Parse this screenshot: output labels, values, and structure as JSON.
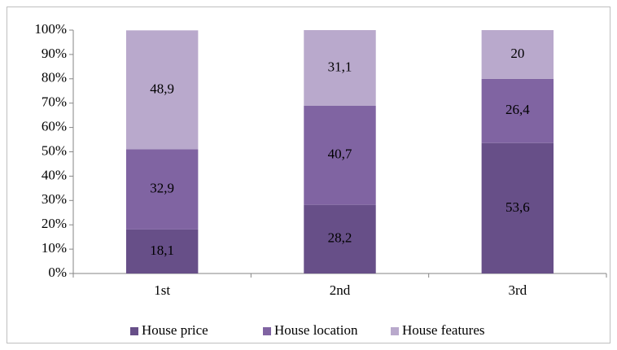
{
  "chart_data": {
    "type": "stacked_bar",
    "categories": [
      "1st",
      "2nd",
      "3rd"
    ],
    "series": [
      {
        "name": "House price",
        "color": "#674f88",
        "values": [
          18.1,
          28.2,
          53.6
        ],
        "value_labels": [
          "18,1",
          "28,2",
          "53,6"
        ]
      },
      {
        "name": "House location",
        "color": "#8064a2",
        "values": [
          32.9,
          40.7,
          26.4
        ],
        "value_labels": [
          "32,9",
          "40,7",
          "26,4"
        ]
      },
      {
        "name": "House features",
        "color": "#b9a9cc",
        "values": [
          48.9,
          31.1,
          20
        ],
        "value_labels": [
          "48,9",
          "31,1",
          "20"
        ]
      }
    ],
    "ylim": [
      0,
      100
    ],
    "yticks": [
      {
        "value": 0,
        "label": "0%"
      },
      {
        "value": 10,
        "label": "10%"
      },
      {
        "value": 20,
        "label": "20%"
      },
      {
        "value": 30,
        "label": "30%"
      },
      {
        "value": 40,
        "label": "40%"
      },
      {
        "value": 50,
        "label": "50%"
      },
      {
        "value": 60,
        "label": "60%"
      },
      {
        "value": 70,
        "label": "70%"
      },
      {
        "value": 80,
        "label": "80%"
      },
      {
        "value": 90,
        "label": "90%"
      },
      {
        "value": 100,
        "label": "100%"
      }
    ],
    "legend": "bottom"
  }
}
